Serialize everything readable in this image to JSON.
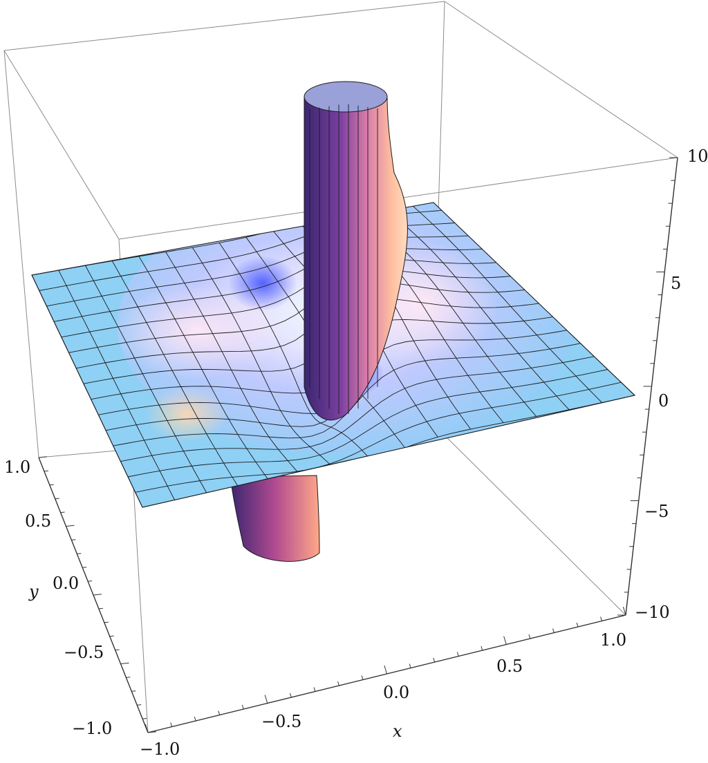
{
  "chart_data": {
    "type": "surface3d",
    "title": "",
    "xlabel": "x",
    "ylabel": "y",
    "zlabel": "",
    "xlim": [
      -1.0,
      1.0
    ],
    "ylim": [
      -1.0,
      1.0
    ],
    "zlim": [
      -10,
      10
    ],
    "x_ticks": [
      "−1.0",
      "−0.5",
      "0.0",
      "0.5",
      "1.0"
    ],
    "y_ticks": [
      "−1.0",
      "−0.5",
      "0.0",
      "0.5",
      "1.0"
    ],
    "z_ticks": [
      "−10",
      "−5",
      "0",
      "5",
      "10"
    ],
    "surface": {
      "description_kind": "singular surface with tube-like pole near origin, rising to +10 and dipping to -10",
      "mesh_lines": 15,
      "colors": {
        "flat": "#8fd0f5",
        "mid": "#f2eaff",
        "peak_light": "#ffb08a",
        "peak_dark": "#4b2a7a",
        "tube_dark": "#3a2a72",
        "tube_light": "#f7a88a"
      }
    },
    "box": {
      "visible": true,
      "edge_color": "#8a8a8a"
    }
  }
}
